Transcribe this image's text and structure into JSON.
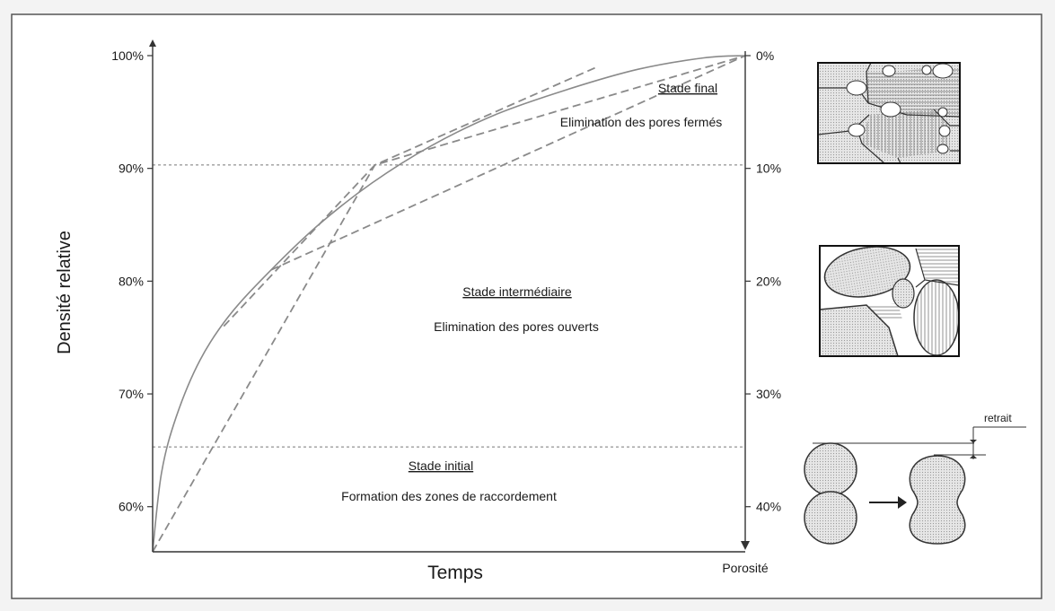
{
  "chart_data": {
    "type": "line",
    "ylabel": "Densité relative",
    "xlabel": "Temps",
    "y2label": "Porosité",
    "ylim": [
      56,
      100
    ],
    "y_ticks": [
      "60%",
      "70%",
      "80%",
      "90%",
      "100%"
    ],
    "y_tick_values": [
      60,
      70,
      80,
      90,
      100
    ],
    "y2_ticks": [
      "0%",
      "10%",
      "20%",
      "30%",
      "40%"
    ],
    "y2_tick_values": [
      0,
      10,
      20,
      30,
      40
    ],
    "stage_boundaries": [
      65.3,
      90.3
    ],
    "series": [
      {
        "values": [
          [
            0,
            56
          ],
          [
            0.015,
            63
          ],
          [
            0.04,
            68
          ],
          [
            0.08,
            73
          ],
          [
            0.13,
            77
          ],
          [
            0.2,
            81
          ],
          [
            0.28,
            85
          ],
          [
            0.37,
            88.7
          ],
          [
            0.47,
            92
          ],
          [
            0.58,
            94.8
          ],
          [
            0.7,
            97
          ],
          [
            0.82,
            98.8
          ],
          [
            0.93,
            99.8
          ],
          [
            1,
            100
          ]
        ]
      },
      {
        "values": [
          [
            0,
            56
          ],
          [
            0.375,
            90.3
          ],
          [
            0.75,
            99
          ]
        ]
      },
      {
        "values": [
          [
            0.12,
            76
          ],
          [
            0.375,
            90.3
          ],
          [
            1,
            100
          ]
        ]
      },
      {
        "values": [
          [
            0.2,
            81
          ],
          [
            1,
            100
          ]
        ]
      }
    ],
    "grid": false
  },
  "stages": {
    "final": {
      "title": "Stade final",
      "text": "Elimination des pores fermés"
    },
    "intermediate": {
      "title": "Stade intermédiaire",
      "text": "Elimination des pores ouverts"
    },
    "initial": {
      "title": "Stade initial",
      "text": "Formation des zones de raccordement"
    }
  },
  "illustration": {
    "shrink_label": "retrait"
  },
  "colors": {
    "curve": "#8a8a8a",
    "axis": "#333333",
    "frame": "#555555"
  }
}
